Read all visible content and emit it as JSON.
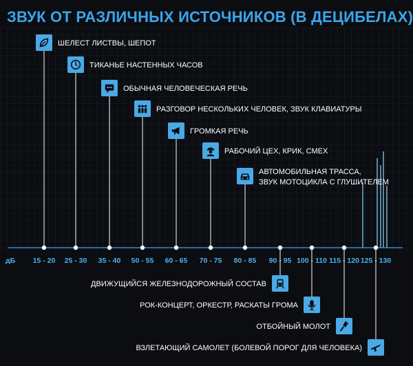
{
  "chart_data": {
    "type": "area",
    "title": "ЗВУК ОТ РАЗЛИЧНЫХ ИСТОЧНИКОВ (В ДЕЦИБЕЛАХ)",
    "unit": "дБ",
    "tick_labels": [
      "15 - 20",
      "25 - 30",
      "35 - 40",
      "50 - 55",
      "60 - 65",
      "70 - 75",
      "80 - 85",
      "90 - 95",
      "100 - 110",
      "115 - 120",
      "125 - 130"
    ],
    "sources_above": [
      {
        "label": "ШЕЛЕСТ ЛИСТВЫ, ШЕПОТ",
        "db": "15 - 20",
        "icon": "leaf-icon"
      },
      {
        "label": "ТИКАНЬЕ НАСТЕННЫХ ЧАСОВ",
        "db": "25 - 30",
        "icon": "clock-icon"
      },
      {
        "label": "ОБЫЧНАЯ ЧЕЛОВЕЧЕСКАЯ РЕЧЬ",
        "db": "35 - 40",
        "icon": "speech-bubble-icon"
      },
      {
        "label": "РАЗГОВОР НЕСКОЛЬКИХ ЧЕЛОВЕК, ЗВУК КЛАВИАТУРЫ",
        "db": "50 - 55",
        "icon": "people-icon"
      },
      {
        "label": "ГРОМКАЯ РЕЧЬ",
        "db": "60 - 65",
        "icon": "megaphone-icon"
      },
      {
        "label": "РАБОЧИЙ ЦЕХ, КРИК, СМЕХ",
        "db": "70 - 75",
        "icon": "worker-icon"
      },
      {
        "label_lines": [
          "АВТОМОБИЛЬНАЯ ТРАССА,",
          "ЗВУК МОТОЦИКЛА С ГЛУШИТЕЛЕМ"
        ],
        "db": "80 - 85",
        "icon": "car-icon"
      }
    ],
    "sources_below": [
      {
        "label": "ДВИЖУЩИЙСЯ ЖЕЛЕЗНОДОРОЖНЫЙ СОСТАВ",
        "db": "90 - 95",
        "icon": "train-icon"
      },
      {
        "label": "РОК-КОНЦЕРТ, ОРКЕСТР, РАСКАТЫ ГРОМА",
        "db": "100 - 110",
        "icon": "microphone-icon"
      },
      {
        "label": "ОТБОЙНЫЙ МОЛОТ",
        "db": "115 - 120",
        "icon": "jackhammer-icon"
      },
      {
        "label": "ВЗЛЕТАЮЩИЙ САМОЛЕТ (БОЛЕВОЙ ПОРОГ ДЛЯ ЧЕЛОВЕКА)",
        "db": "125 - 130",
        "icon": "airplane-icon"
      }
    ],
    "colors": {
      "background": "#0c0d11",
      "accent": "#3aa6ec",
      "icon_fill": "#4aa9e6",
      "text": "#ffffff"
    }
  }
}
